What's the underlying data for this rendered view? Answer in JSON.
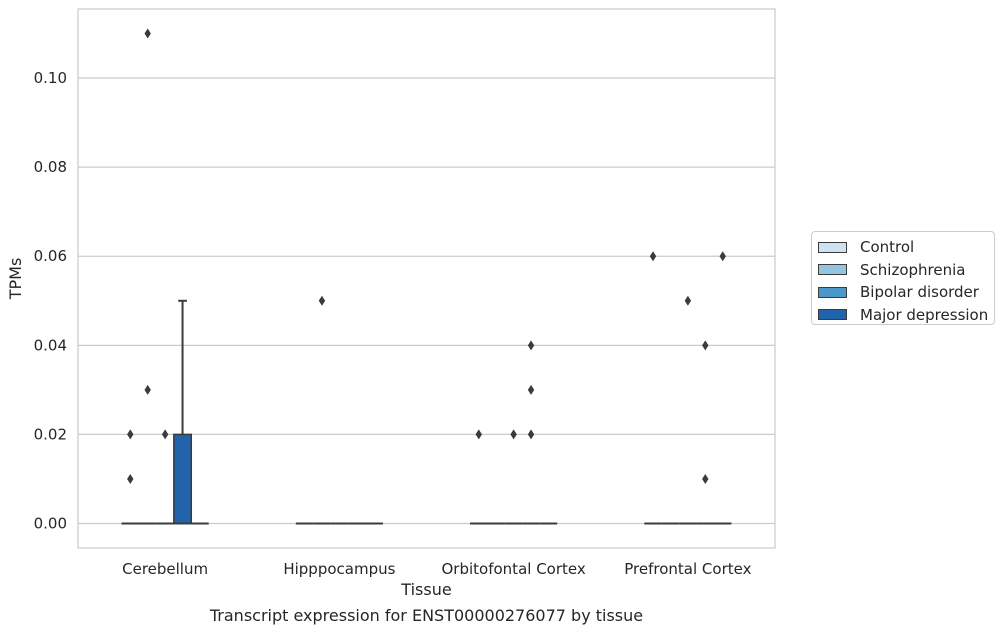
{
  "chart_data": {
    "type": "box",
    "title": "Transcript expression for ENST00000276077 by tissue",
    "xlabel": "Tissue",
    "ylabel": "TPMs",
    "ylim": [
      -0.0055,
      0.1155
    ],
    "yticks": [
      "0.00",
      "0.02",
      "0.04",
      "0.06",
      "0.08",
      "0.10"
    ],
    "grid": "horizontal",
    "legend_position": "right",
    "categories": [
      "Cerebellum",
      "Hipppocampus",
      "Orbitofontal Cortex",
      "Prefrontal Cortex"
    ],
    "series": [
      {
        "name": "Control",
        "color": "#d0e1f2",
        "boxes": [
          {
            "q1": 0,
            "median": 0,
            "q3": 0,
            "whisker_low": 0,
            "whisker_high": 0,
            "outliers": [
              0.01,
              0.02
            ]
          },
          {
            "q1": 0,
            "median": 0,
            "q3": 0,
            "whisker_low": 0,
            "whisker_high": 0,
            "outliers": []
          },
          {
            "q1": 0,
            "median": 0,
            "q3": 0,
            "whisker_low": 0,
            "whisker_high": 0,
            "outliers": [
              0.02
            ]
          },
          {
            "q1": 0,
            "median": 0,
            "q3": 0,
            "whisker_low": 0,
            "whisker_high": 0,
            "outliers": [
              0.06
            ]
          }
        ]
      },
      {
        "name": "Schizophrenia",
        "color": "#94c4df",
        "boxes": [
          {
            "q1": 0,
            "median": 0,
            "q3": 0,
            "whisker_low": 0,
            "whisker_high": 0,
            "outliers": [
              0.03,
              0.11
            ]
          },
          {
            "q1": 0,
            "median": 0,
            "q3": 0,
            "whisker_low": 0,
            "whisker_high": 0,
            "outliers": [
              0.05
            ]
          },
          {
            "q1": 0,
            "median": 0,
            "q3": 0,
            "whisker_low": 0,
            "whisker_high": 0,
            "outliers": []
          },
          {
            "q1": 0,
            "median": 0,
            "q3": 0,
            "whisker_low": 0,
            "whisker_high": 0,
            "outliers": []
          }
        ]
      },
      {
        "name": "Bipolar disorder",
        "color": "#4a98c9",
        "boxes": [
          {
            "q1": 0,
            "median": 0,
            "q3": 0,
            "whisker_low": 0,
            "whisker_high": 0,
            "outliers": [
              0.02
            ]
          },
          {
            "q1": 0,
            "median": 0,
            "q3": 0,
            "whisker_low": 0,
            "whisker_high": 0,
            "outliers": []
          },
          {
            "q1": 0,
            "median": 0,
            "q3": 0,
            "whisker_low": 0,
            "whisker_high": 0,
            "outliers": [
              0.02
            ]
          },
          {
            "q1": 0,
            "median": 0,
            "q3": 0,
            "whisker_low": 0,
            "whisker_high": 0,
            "outliers": [
              0.05
            ]
          }
        ]
      },
      {
        "name": "Major depression",
        "color": "#2164ab",
        "boxes": [
          {
            "q1": 0,
            "median": 0,
            "q3": 0.02,
            "whisker_low": 0,
            "whisker_high": 0.05,
            "outliers": []
          },
          {
            "q1": 0,
            "median": 0,
            "q3": 0,
            "whisker_low": 0,
            "whisker_high": 0,
            "outliers": []
          },
          {
            "q1": 0,
            "median": 0,
            "q3": 0,
            "whisker_low": 0,
            "whisker_high": 0,
            "outliers": [
              0.02,
              0.03,
              0.04
            ]
          },
          {
            "q1": 0,
            "median": 0,
            "q3": 0,
            "whisker_low": 0,
            "whisker_high": 0,
            "outliers": [
              0.01,
              0.04
            ]
          }
        ]
      },
      {
        "name": "",
        "color": "#1a4f8e",
        "boxes": [
          {
            "q1": 0,
            "median": 0,
            "q3": 0,
            "whisker_low": 0,
            "whisker_high": 0,
            "outliers": []
          },
          {
            "q1": 0,
            "median": 0,
            "q3": 0,
            "whisker_low": 0,
            "whisker_high": 0,
            "outliers": []
          },
          {
            "q1": 0,
            "median": 0,
            "q3": 0,
            "whisker_low": 0,
            "whisker_high": 0,
            "outliers": []
          },
          {
            "q1": 0,
            "median": 0,
            "q3": 0,
            "whisker_low": 0,
            "whisker_high": 0,
            "outliers": [
              0.06
            ]
          }
        ]
      }
    ]
  }
}
